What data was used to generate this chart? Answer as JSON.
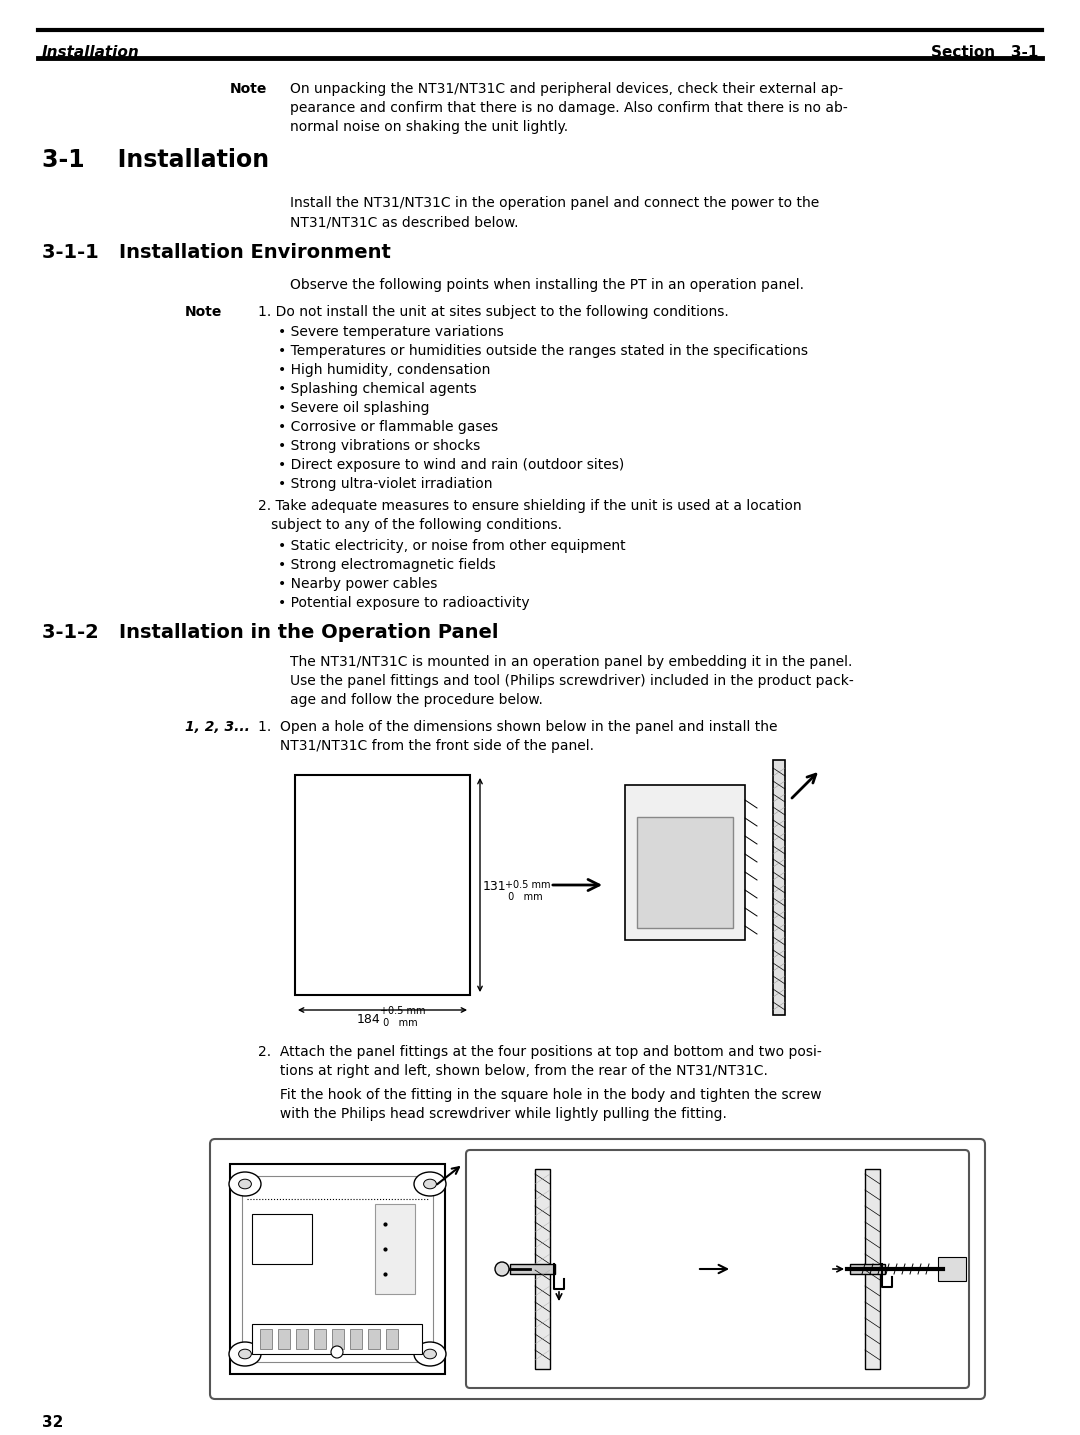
{
  "page_number": "32",
  "header_left": "Installation",
  "header_right": "Section   3-1",
  "note_intro_lines": [
    "On unpacking the NT31/NT31C and peripheral devices, check their external ap-",
    "pearance and confirm that there is no damage. Also confirm that there is no ab-",
    "normal noise on shaking the unit lightly."
  ],
  "section_title": "3-1    Installation",
  "section_body_lines": [
    "Install the NT31/NT31C in the operation panel and connect the power to the",
    "NT31/NT31C as described below."
  ],
  "subsection1_title": "3-1-1   Installation Environment",
  "subsection1_body": "Observe the following points when installing the PT in an operation panel.",
  "note1_header": "1. Do not install the unit at sites subject to the following conditions.",
  "note1_bullets": [
    "Severe temperature variations",
    "Temperatures or humidities outside the ranges stated in the specifications",
    "High humidity, condensation",
    "Splashing chemical agents",
    "Severe oil splashing",
    "Corrosive or flammable gases",
    "Strong vibrations or shocks",
    "Direct exposure to wind and rain (outdoor sites)",
    "Strong ultra-violet irradiation"
  ],
  "note2_lines": [
    "2. Take adequate measures to ensure shielding if the unit is used at a location",
    "   subject to any of the following conditions."
  ],
  "note2_bullets": [
    "Static electricity, or noise from other equipment",
    "Strong electromagnetic fields",
    "Nearby power cables",
    "Potential exposure to radioactivity"
  ],
  "subsection2_title": "3-1-2   Installation in the Operation Panel",
  "subsection2_body_lines": [
    "The NT31/NT31C is mounted in an operation panel by embedding it in the panel.",
    "Use the panel fittings and tool (Philips screwdriver) included in the product pack-",
    "age and follow the procedure below."
  ],
  "step_label": "1, 2, 3...",
  "step1_lines": [
    "1.  Open a hole of the dimensions shown below in the panel and install the",
    "     NT31/NT31C from the front side of the panel."
  ],
  "step2_lines": [
    "2.  Attach the panel fittings at the four positions at top and bottom and two posi-",
    "     tions at right and left, shown below, from the rear of the NT31/NT31C."
  ],
  "step2b_lines": [
    "     Fit the hook of the fitting in the square hole in the body and tighten the screw",
    "     with the Philips head screwdriver while lightly pulling the fitting."
  ],
  "background_color": "#ffffff",
  "text_color": "#000000"
}
